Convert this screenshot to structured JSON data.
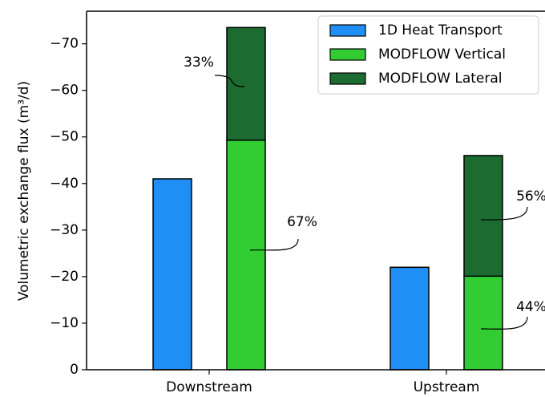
{
  "chart_data": {
    "type": "bar",
    "y_label": "Volumetric exchange flux (m³/d)",
    "categories": [
      "Downstream",
      "Upstream"
    ],
    "series": [
      {
        "name": "1D Heat Transport",
        "color": "#1f8ff5",
        "values": [
          -41,
          -22
        ]
      },
      {
        "name": "MODFLOW Vertical",
        "color": "#32cd32",
        "values": [
          -49.3,
          -20.1
        ]
      },
      {
        "name": "MODFLOW Lateral",
        "color": "#1c6b30",
        "values": [
          -24.2,
          -25.9
        ]
      }
    ],
    "annotations": [
      "33%",
      "67%",
      "56%",
      "44%"
    ],
    "ylim": [
      0,
      -77
    ],
    "yticks": [
      0,
      {
        "value": -10,
        "label": "−10"
      },
      {
        "value": -20,
        "label": "−20"
      },
      {
        "value": -30,
        "label": "−30"
      },
      {
        "value": -40,
        "label": "−40"
      },
      {
        "value": -50,
        "label": "−50"
      },
      {
        "value": -60,
        "label": "−60"
      },
      {
        "value": -70,
        "label": "−70"
      }
    ],
    "legend": "upper right"
  }
}
